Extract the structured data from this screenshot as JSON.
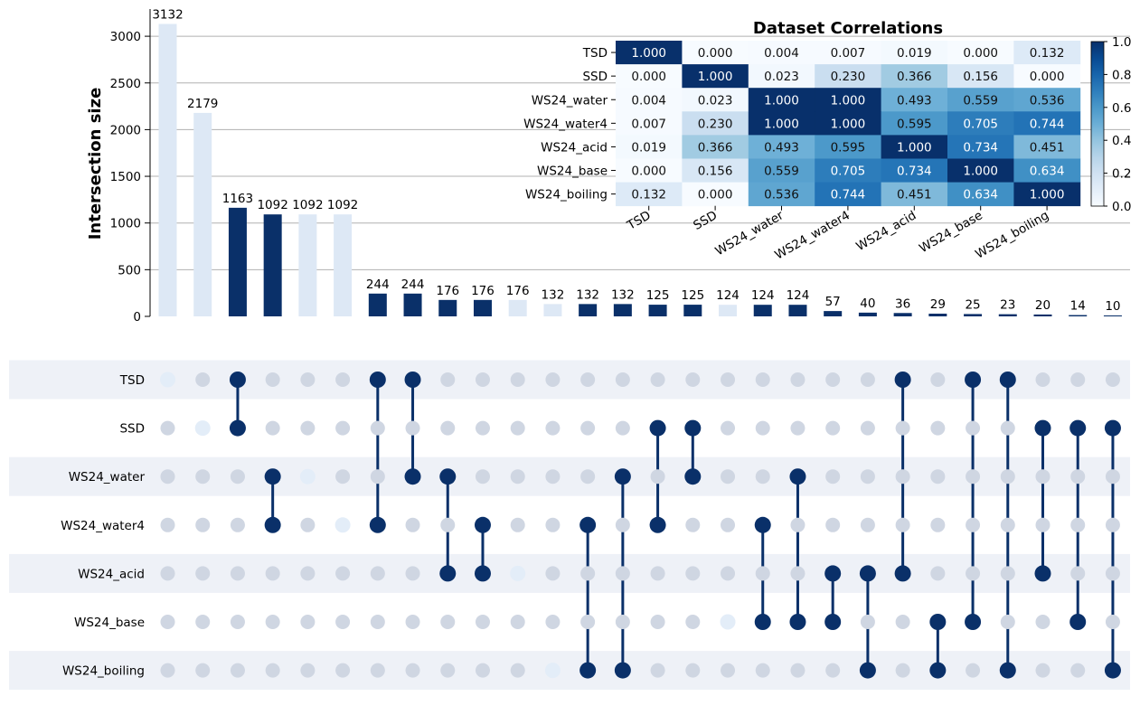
{
  "chart_data": [
    {
      "type": "bar",
      "ylabel": "Intersection size",
      "ylim": [
        0,
        3200
      ],
      "yticks": [
        0,
        500,
        1000,
        1500,
        2000,
        2500,
        3000
      ],
      "grid": "horizontal",
      "values": [
        3132,
        2179,
        1163,
        1092,
        1092,
        1092,
        244,
        244,
        176,
        176,
        176,
        132,
        132,
        132,
        125,
        125,
        124,
        124,
        124,
        57,
        40,
        36,
        29,
        25,
        23,
        20,
        14,
        10
      ],
      "highlighted": [
        false,
        false,
        true,
        true,
        false,
        false,
        true,
        true,
        true,
        true,
        false,
        false,
        true,
        true,
        true,
        true,
        false,
        true,
        true,
        true,
        true,
        true,
        true,
        true,
        true,
        true,
        true,
        true
      ],
      "sets": [
        "TSD",
        "SSD",
        "WS24_water",
        "WS24_water4",
        "WS24_acid",
        "WS24_base",
        "WS24_boiling"
      ],
      "memberships": [
        [
          "TSD"
        ],
        [
          "SSD"
        ],
        [
          "TSD",
          "SSD"
        ],
        [
          "WS24_water",
          "WS24_water4"
        ],
        [
          "WS24_water"
        ],
        [
          "WS24_water4"
        ],
        [
          "TSD",
          "WS24_water4"
        ],
        [
          "TSD",
          "WS24_water"
        ],
        [
          "WS24_water",
          "WS24_acid"
        ],
        [
          "WS24_water4",
          "WS24_acid"
        ],
        [
          "WS24_acid"
        ],
        [
          "WS24_boiling"
        ],
        [
          "WS24_water4",
          "WS24_boiling"
        ],
        [
          "WS24_water",
          "WS24_boiling"
        ],
        [
          "SSD",
          "WS24_water4"
        ],
        [
          "SSD",
          "WS24_water"
        ],
        [
          "WS24_base"
        ],
        [
          "WS24_water4",
          "WS24_base"
        ],
        [
          "WS24_water",
          "WS24_base"
        ],
        [
          "WS24_acid",
          "WS24_base"
        ],
        [
          "WS24_acid",
          "WS24_boiling"
        ],
        [
          "TSD",
          "WS24_acid"
        ],
        [
          "WS24_base",
          "WS24_boiling"
        ],
        [
          "TSD",
          "WS24_base"
        ],
        [
          "TSD",
          "WS24_boiling"
        ],
        [
          "SSD",
          "WS24_acid"
        ],
        [
          "SSD",
          "WS24_base"
        ],
        [
          "SSD",
          "WS24_boiling"
        ]
      ]
    },
    {
      "type": "heatmap",
      "title": "Dataset Correlations",
      "labels": [
        "TSD",
        "SSD",
        "WS24_water",
        "WS24_water4",
        "WS24_acid",
        "WS24_base",
        "WS24_boiling"
      ],
      "matrix": [
        [
          1.0,
          0.0,
          0.004,
          0.007,
          0.019,
          0.0,
          0.132
        ],
        [
          0.0,
          1.0,
          0.023,
          0.23,
          0.366,
          0.156,
          0.0
        ],
        [
          0.004,
          0.023,
          1.0,
          1.0,
          0.493,
          0.559,
          0.536
        ],
        [
          0.007,
          0.23,
          1.0,
          1.0,
          0.595,
          0.705,
          0.744
        ],
        [
          0.019,
          0.366,
          0.493,
          0.595,
          1.0,
          0.734,
          0.451
        ],
        [
          0.0,
          0.156,
          0.559,
          0.705,
          0.734,
          1.0,
          0.634
        ],
        [
          0.132,
          0.0,
          0.536,
          0.744,
          0.451,
          0.634,
          1.0
        ]
      ],
      "colorbar_ticks": [
        "0.0",
        "0.2",
        "0.4",
        "0.6",
        "0.8",
        "1.0"
      ],
      "colormap": "Blues"
    }
  ],
  "colors": {
    "highlight": "#0a3069",
    "faded_bar": "#dde8f5",
    "faded_dot": "#e3edf8",
    "inactive_dot": "#cfd6e2",
    "stripe": "#eef1f7",
    "grid": "#b0b0b0"
  }
}
